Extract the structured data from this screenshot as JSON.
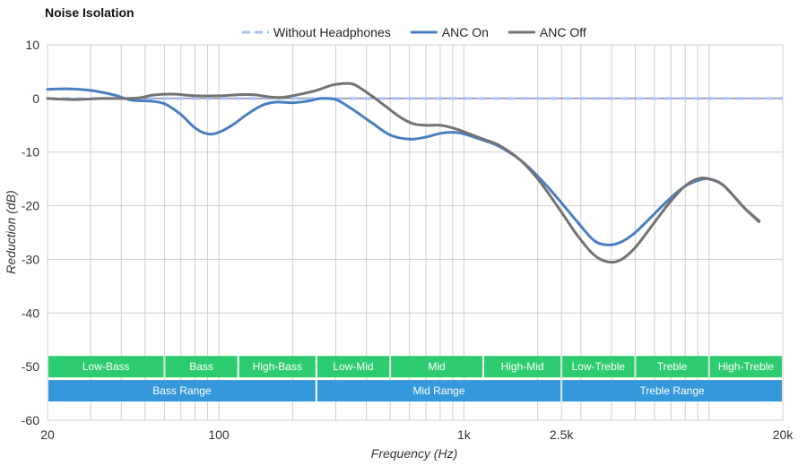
{
  "chart_data": {
    "type": "line",
    "title": "Noise Isolation",
    "xlabel": "Frequency (Hz)",
    "ylabel": "Reduction (dB)",
    "x_scale": "log",
    "xlim": [
      20,
      20000
    ],
    "ylim": [
      -60,
      10
    ],
    "grid": true,
    "legend_position": "top-center",
    "x_ticks": [
      {
        "value": 20,
        "label": "20"
      },
      {
        "value": 100,
        "label": "100"
      },
      {
        "value": 1000,
        "label": "1k"
      },
      {
        "value": 2500,
        "label": "2.5k"
      },
      {
        "value": 20000,
        "label": "20k"
      }
    ],
    "y_ticks": [
      10,
      0,
      -10,
      -20,
      -30,
      -40,
      -50,
      -60
    ],
    "series": [
      {
        "name": "Without Headphones",
        "color": "#a9c0f5",
        "style": "dashed",
        "points": [
          [
            20,
            0
          ],
          [
            20000,
            0
          ]
        ]
      },
      {
        "name": "ANC On",
        "color": "#4a7ec2",
        "style": "solid",
        "points": [
          [
            20,
            1.7
          ],
          [
            24,
            1.8
          ],
          [
            30,
            1.5
          ],
          [
            37,
            0.7
          ],
          [
            44,
            -0.3
          ],
          [
            52,
            -0.5
          ],
          [
            60,
            -1.0
          ],
          [
            70,
            -3.0
          ],
          [
            80,
            -5.5
          ],
          [
            90,
            -6.6
          ],
          [
            100,
            -6.3
          ],
          [
            115,
            -4.8
          ],
          [
            130,
            -3.0
          ],
          [
            150,
            -1.3
          ],
          [
            170,
            -0.7
          ],
          [
            200,
            -0.8
          ],
          [
            230,
            -0.5
          ],
          [
            260,
            0.0
          ],
          [
            300,
            -0.2
          ],
          [
            350,
            -2.0
          ],
          [
            420,
            -4.5
          ],
          [
            500,
            -6.8
          ],
          [
            600,
            -7.6
          ],
          [
            700,
            -7.2
          ],
          [
            800,
            -6.5
          ],
          [
            900,
            -6.3
          ],
          [
            1000,
            -6.6
          ],
          [
            1200,
            -7.8
          ],
          [
            1400,
            -9.0
          ],
          [
            1700,
            -11.5
          ],
          [
            2000,
            -14.5
          ],
          [
            2400,
            -18.5
          ],
          [
            2900,
            -23.0
          ],
          [
            3400,
            -26.5
          ],
          [
            3900,
            -27.3
          ],
          [
            4400,
            -26.7
          ],
          [
            5000,
            -25.0
          ],
          [
            5900,
            -21.8
          ],
          [
            6800,
            -19.0
          ],
          [
            7900,
            -16.5
          ],
          [
            9000,
            -15.3
          ],
          [
            10000,
            -15.0
          ],
          [
            11300,
            -16.0
          ],
          [
            12500,
            -18.0
          ],
          [
            14000,
            -20.5
          ],
          [
            16000,
            -22.8
          ]
        ]
      },
      {
        "name": "ANC Off",
        "color": "#737373",
        "style": "solid",
        "points": [
          [
            20,
            0.0
          ],
          [
            26,
            -0.2
          ],
          [
            33,
            0.0
          ],
          [
            40,
            0.0
          ],
          [
            47,
            0.1
          ],
          [
            53,
            0.6
          ],
          [
            60,
            0.8
          ],
          [
            67,
            0.8
          ],
          [
            80,
            0.5
          ],
          [
            100,
            0.5
          ],
          [
            120,
            0.7
          ],
          [
            140,
            0.7
          ],
          [
            160,
            0.3
          ],
          [
            180,
            0.2
          ],
          [
            210,
            0.7
          ],
          [
            250,
            1.5
          ],
          [
            290,
            2.5
          ],
          [
            330,
            2.8
          ],
          [
            360,
            2.5
          ],
          [
            420,
            0.5
          ],
          [
            480,
            -1.5
          ],
          [
            550,
            -3.5
          ],
          [
            620,
            -4.7
          ],
          [
            700,
            -5.0
          ],
          [
            800,
            -5.0
          ],
          [
            900,
            -5.5
          ],
          [
            1000,
            -6.2
          ],
          [
            1200,
            -7.6
          ],
          [
            1400,
            -8.8
          ],
          [
            1700,
            -11.5
          ],
          [
            2000,
            -15.0
          ],
          [
            2400,
            -20.0
          ],
          [
            2900,
            -25.5
          ],
          [
            3400,
            -29.2
          ],
          [
            3900,
            -30.5
          ],
          [
            4400,
            -30.0
          ],
          [
            5000,
            -27.8
          ],
          [
            5900,
            -23.5
          ],
          [
            6800,
            -19.8
          ],
          [
            7900,
            -16.5
          ],
          [
            9000,
            -15.0
          ],
          [
            10000,
            -15.0
          ],
          [
            11300,
            -16.0
          ],
          [
            12500,
            -18.0
          ],
          [
            14000,
            -20.5
          ],
          [
            16000,
            -23.0
          ]
        ]
      }
    ],
    "bands_row1": [
      {
        "label": "Low-Bass",
        "from": 20,
        "to": 60,
        "color": "#2ecc71"
      },
      {
        "label": "Bass",
        "from": 60,
        "to": 120,
        "color": "#2ecc71"
      },
      {
        "label": "High-Bass",
        "from": 120,
        "to": 250,
        "color": "#2ecc71"
      },
      {
        "label": "Low-Mid",
        "from": 250,
        "to": 500,
        "color": "#2ecc71"
      },
      {
        "label": "Mid",
        "from": 500,
        "to": 1200,
        "color": "#2ecc71"
      },
      {
        "label": "High-Mid",
        "from": 1200,
        "to": 2500,
        "color": "#2ecc71"
      },
      {
        "label": "Low-Treble",
        "from": 2500,
        "to": 5000,
        "color": "#2ecc71"
      },
      {
        "label": "Treble",
        "from": 5000,
        "to": 10000,
        "color": "#2ecc71"
      },
      {
        "label": "High-Treble",
        "from": 10000,
        "to": 20000,
        "color": "#2ecc71"
      }
    ],
    "bands_row2": [
      {
        "label": "Bass Range",
        "from": 20,
        "to": 250,
        "color": "#3498db"
      },
      {
        "label": "Mid Range",
        "from": 250,
        "to": 2500,
        "color": "#3498db"
      },
      {
        "label": "Treble Range",
        "from": 2500,
        "to": 20000,
        "color": "#3498db"
      }
    ],
    "band_rows_y": [
      [
        -48,
        -52
      ],
      [
        -52.5,
        -56.5
      ]
    ]
  }
}
